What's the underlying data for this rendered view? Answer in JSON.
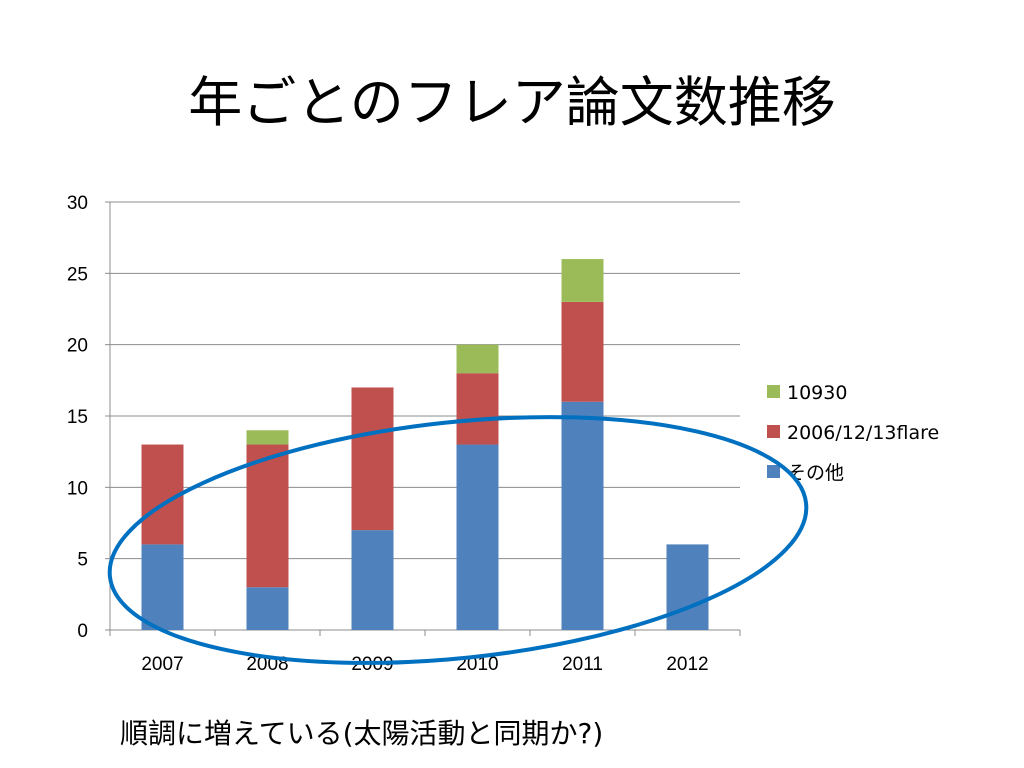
{
  "slide": {
    "title": "年ごとのフレア論文数推移",
    "caption": "順調に増えている(太陽活動と同期か?)"
  },
  "chart_data": {
    "type": "bar",
    "stacked": true,
    "categories": [
      "2007",
      "2008",
      "2009",
      "2010",
      "2011",
      "2012"
    ],
    "series": [
      {
        "name": "その他",
        "color": "#4f81bd",
        "values": [
          6,
          3,
          7,
          13,
          16,
          6
        ]
      },
      {
        "name": "2006/12/13flare",
        "color": "#c0504d",
        "values": [
          7,
          10,
          10,
          5,
          7,
          0
        ]
      },
      {
        "name": "10930",
        "color": "#9bbb59",
        "values": [
          0,
          1,
          0,
          2,
          3,
          0
        ]
      }
    ],
    "ylim": [
      0,
      30
    ],
    "yticks": [
      0,
      5,
      10,
      15,
      20,
      25,
      30
    ],
    "grid": true,
    "legend": "right",
    "annotation": {
      "shape": "ellipse",
      "color": "#0070c0"
    }
  }
}
